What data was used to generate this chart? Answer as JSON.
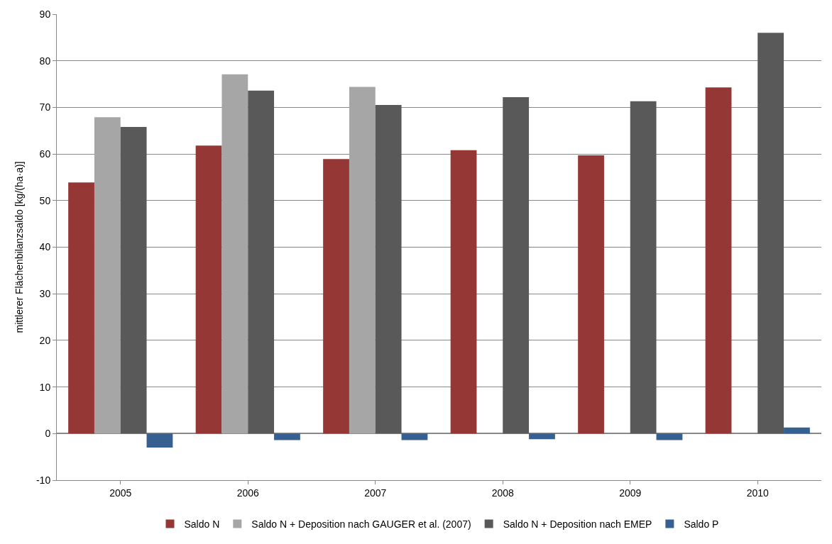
{
  "chart_data": {
    "type": "bar",
    "ylabel": "mittlerer Flächenbilanzsaldo [kg/(ha·a)]",
    "categories": [
      "2005",
      "2006",
      "2007",
      "2008",
      "2009",
      "2010"
    ],
    "series": [
      {
        "name": "Saldo N",
        "color": "#953735",
        "values": [
          53.9,
          61.8,
          58.9,
          60.8,
          59.7,
          74.3
        ]
      },
      {
        "name": "Saldo N + Deposition nach GAUGER et al. (2007)",
        "color": "#a6a6a6",
        "values": [
          67.9,
          77.1,
          74.4,
          null,
          null,
          null
        ]
      },
      {
        "name": "Saldo N + Deposition nach EMEP",
        "color": "#595959",
        "values": [
          65.8,
          73.6,
          70.5,
          72.2,
          71.3,
          86.0
        ]
      },
      {
        "name": "Saldo P",
        "color": "#376092",
        "values": [
          -3.0,
          -1.4,
          -1.4,
          -1.2,
          -1.4,
          1.3
        ]
      }
    ],
    "ylim": [
      -10,
      90
    ],
    "yticks": [
      -10,
      0,
      10,
      20,
      30,
      40,
      50,
      60,
      70,
      80,
      90
    ],
    "grid": "y",
    "legend": "bottom"
  }
}
